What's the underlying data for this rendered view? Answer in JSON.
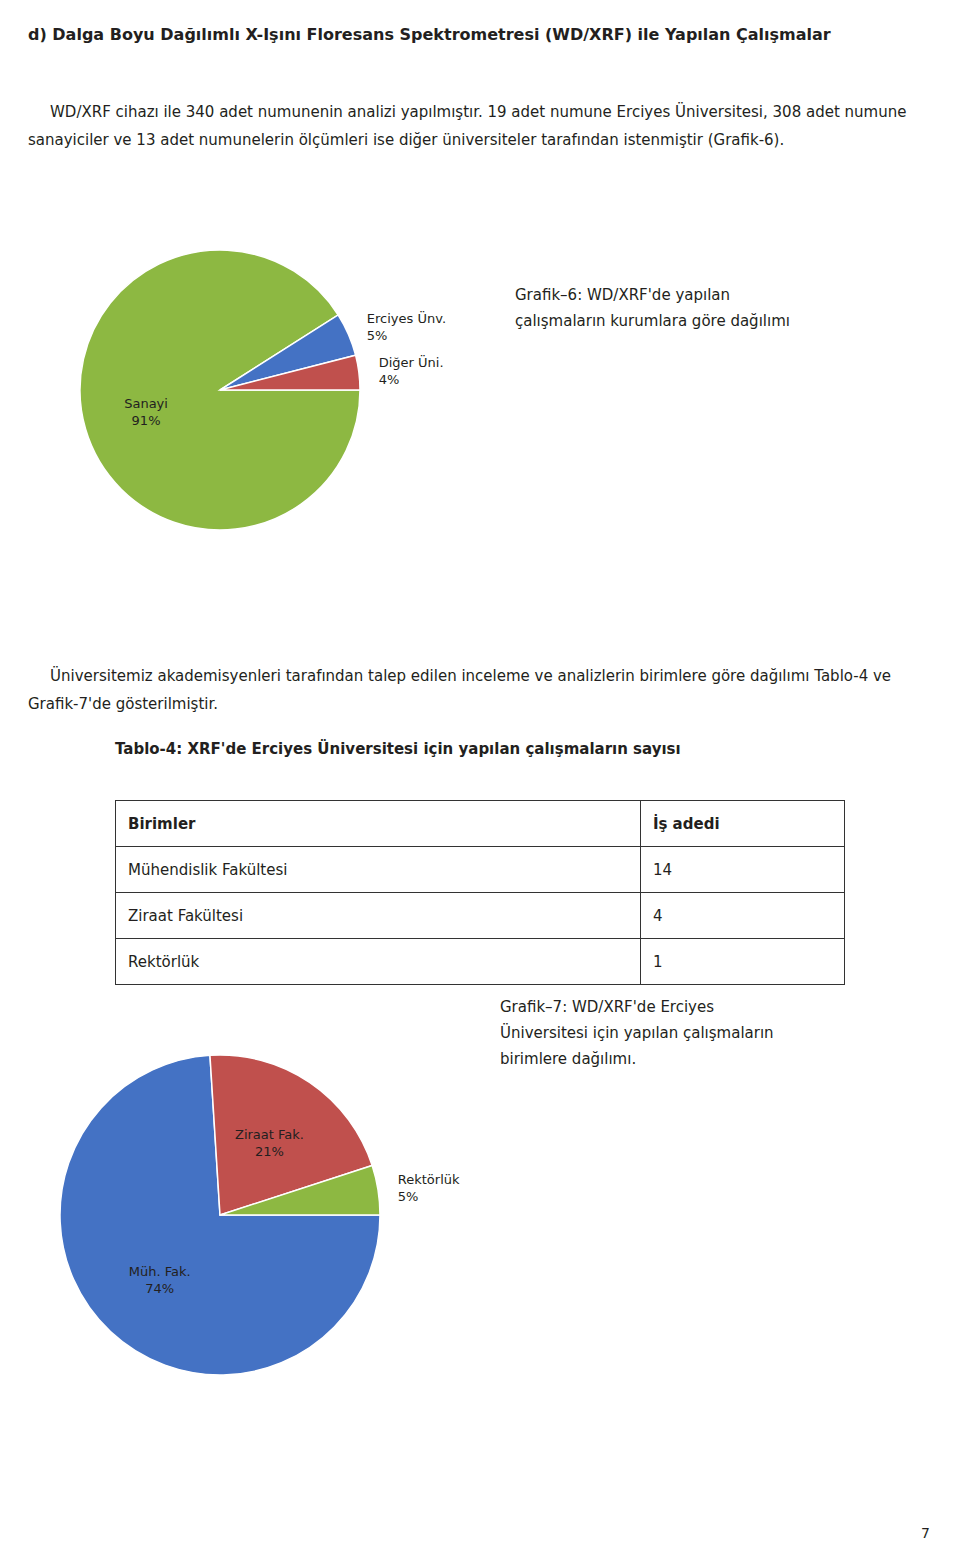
{
  "title": "d) Dalga Boyu Dağılımlı X-Işını Floresans Spektrometresi (WD/XRF) ile Yapılan Çalışmalar",
  "paragraphs": [
    "WD/XRF cihazı ile 340 adet numunenin analizi yapılmıştır. 19 adet numune Erciyes Üniversitesi, 308 adet numune sanayiciler ve 13 adet numunelerin ölçümleri ise diğer üniversiteler tarafından istenmiştir (Grafik-6).",
    "Üniversitemiz akademisyenleri tarafından talep edilen inceleme ve analizlerin birimlere göre dağılımı Tablo-4 ve Grafik-7'de gösterilmiştir."
  ],
  "table": {
    "title": "Tablo-4: XRF'de Erciyes Üniversitesi için yapılan çalışmaların sayısı",
    "headers": [
      "Birimler",
      "İş adedi"
    ],
    "rows": [
      [
        "Mühendislik Fakültesi",
        "14"
      ],
      [
        "Ziraat Fakültesi",
        "4"
      ],
      [
        "Rektörlük",
        "1"
      ]
    ]
  },
  "page_number": "7",
  "chart_data": [
    {
      "type": "pie",
      "title": "Grafik–6: WD/XRF'de yapılan çalışmaların kurumlara göre dağılımı",
      "categories": [
        "Sanayi",
        "Erciyes Ünv.",
        "Diğer Üni."
      ],
      "values": [
        91,
        5,
        4
      ],
      "value_labels": [
        "91%",
        "5%",
        "4%"
      ],
      "colors": [
        "#8db842",
        "#4472c4",
        "#c0504d"
      ],
      "data_labels": true
    },
    {
      "type": "pie",
      "title": "Grafik–7: WD/XRF'de Erciyes Üniversitesi için yapılan çalışmaların birimlere dağılımı.",
      "categories": [
        "Müh. Fak.",
        "Ziraat Fak.",
        "Rektörlük"
      ],
      "values": [
        74,
        21,
        5
      ],
      "value_labels": [
        "74%",
        "21%",
        "5%"
      ],
      "colors": [
        "#4472c4",
        "#c0504d",
        "#8db842"
      ],
      "data_labels": true
    }
  ]
}
